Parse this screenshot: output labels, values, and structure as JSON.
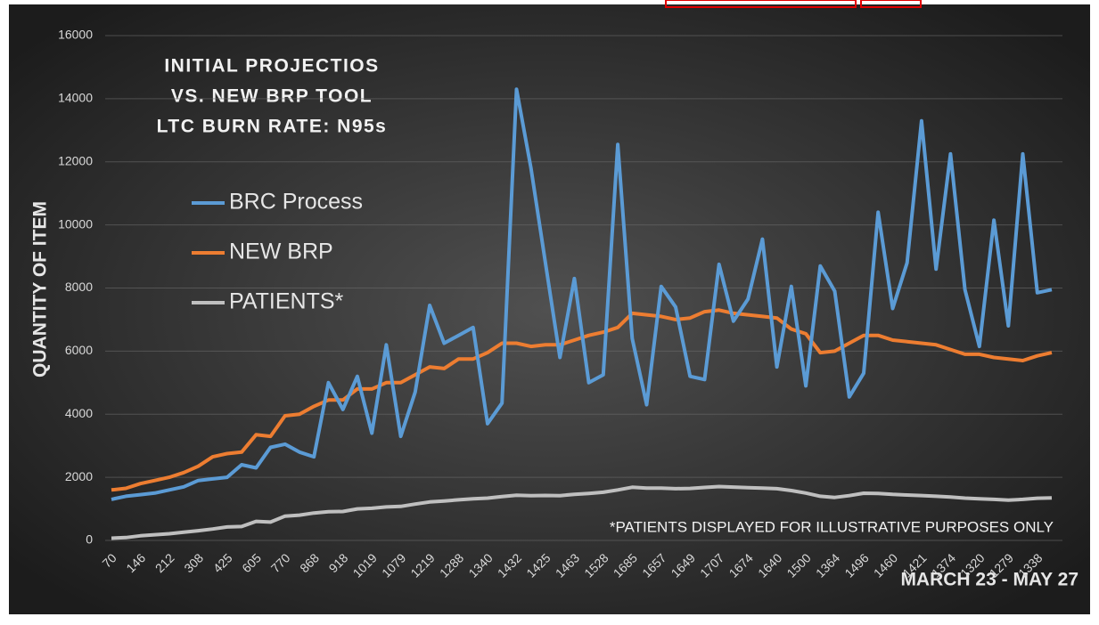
{
  "chart_data": {
    "type": "line",
    "title": [
      "INITIAL PROJECTIOS",
      "VS. NEW BRP TOOL",
      "LTC BURN RATE: N95s"
    ],
    "y_label": "QUANTITY OF ITEM",
    "x_label": "MARCH 23 - MAY 27",
    "annotation": "*PATIENTS DISPLAYED FOR ILLUSTRATIVE PURPOSES ONLY",
    "categories": [
      "70",
      null,
      "146",
      null,
      "212",
      null,
      "308",
      null,
      "425",
      null,
      "605",
      null,
      "770",
      null,
      "868",
      null,
      "918",
      null,
      "1019",
      null,
      "1079",
      null,
      "1219",
      null,
      "1288",
      null,
      "1340",
      null,
      "1432",
      null,
      "1425",
      null,
      "1463",
      null,
      "1528",
      null,
      "1685",
      null,
      "1657",
      null,
      "1649",
      null,
      "1707",
      null,
      "1674",
      null,
      "1640",
      null,
      "1500",
      null,
      "1364",
      null,
      "1496",
      null,
      "1460",
      null,
      "1421",
      null,
      "1374",
      null,
      "1320",
      null,
      "1279",
      null,
      "1338",
      null
    ],
    "series": [
      {
        "name": "BRC Process",
        "color": "#5b9bd5",
        "values": [
          1300,
          1400,
          1450,
          1500,
          1600,
          1700,
          1900,
          1950,
          2000,
          2400,
          2300,
          2950,
          3050,
          2800,
          2650,
          5000,
          4150,
          5200,
          3400,
          6200,
          3300,
          4700,
          7450,
          6250,
          6500,
          6750,
          3700,
          4350,
          14300,
          11800,
          8800,
          5800,
          8300,
          5000,
          5250,
          12550,
          6400,
          4300,
          8050,
          7400,
          5200,
          5100,
          8750,
          6950,
          7650,
          9550,
          5500,
          8050,
          4900,
          8700,
          7900,
          4550,
          5300,
          10400,
          7350,
          8800,
          13300,
          8600,
          12250,
          7950,
          6150,
          10150,
          6800,
          12250,
          7850,
          7950
        ]
      },
      {
        "name": "NEW BRP",
        "color": "#ed7d31",
        "values": [
          1600,
          1650,
          1800,
          1900,
          2000,
          2150,
          2350,
          2650,
          2750,
          2800,
          3350,
          3300,
          3950,
          4000,
          4250,
          4450,
          4450,
          4800,
          4800,
          5000,
          5000,
          5250,
          5500,
          5450,
          5750,
          5750,
          5950,
          6250,
          6250,
          6150,
          6200,
          6200,
          6350,
          6500,
          6600,
          6750,
          7200,
          7150,
          7100,
          7000,
          7050,
          7250,
          7300,
          7200,
          7150,
          7100,
          7050,
          6700,
          6550,
          5950,
          6000,
          6250,
          6500,
          6500,
          6350,
          6300,
          6250,
          6200,
          6050,
          5900,
          5900,
          5800,
          5750,
          5700,
          5850,
          5950
        ]
      },
      {
        "name": "PATIENTS*",
        "color": "#bfbfbf",
        "values": [
          70,
          90,
          146,
          180,
          212,
          260,
          308,
          360,
          425,
          440,
          605,
          580,
          770,
          800,
          868,
          910,
          918,
          1000,
          1019,
          1060,
          1079,
          1150,
          1219,
          1250,
          1288,
          1320,
          1340,
          1390,
          1432,
          1420,
          1425,
          1420,
          1463,
          1490,
          1528,
          1600,
          1685,
          1660,
          1657,
          1640,
          1649,
          1680,
          1707,
          1690,
          1674,
          1660,
          1640,
          1580,
          1500,
          1400,
          1364,
          1420,
          1496,
          1490,
          1460,
          1440,
          1421,
          1400,
          1374,
          1340,
          1320,
          1300,
          1279,
          1300,
          1338,
          1350
        ]
      }
    ],
    "ylim": [
      0,
      16000
    ],
    "yticks": [
      0,
      2000,
      4000,
      6000,
      8000,
      10000,
      12000,
      14000,
      16000
    ],
    "grid": true
  }
}
